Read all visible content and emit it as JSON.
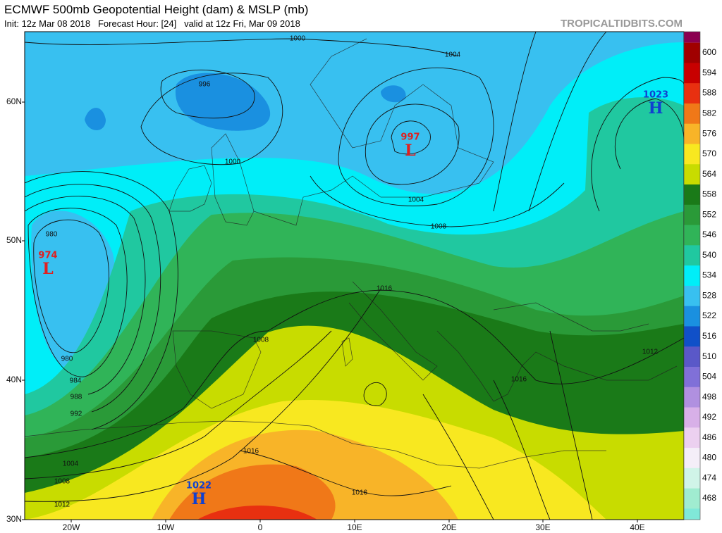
{
  "header": {
    "title": "ECMWF 500mb Geopotential Height (dam) & MSLP (mb)",
    "subtitle": "Init: 12z Mar 08 2018   Forecast Hour: [24]   valid at 12z Fri, Mar 09 2018",
    "site": "TROPICALTIDBITS.COM"
  },
  "axes": {
    "lat_labels": [
      "60N",
      "50N",
      "40N",
      "30N"
    ],
    "lon_labels": [
      "20W",
      "10W",
      "0",
      "10E",
      "20E",
      "30E",
      "40E"
    ]
  },
  "colorbar": {
    "top_color": "#8b0050",
    "bottom_color": "#80e8d8",
    "levels": [
      {
        "value": 600,
        "color": "#a00000"
      },
      {
        "value": 594,
        "color": "#c80000"
      },
      {
        "value": 588,
        "color": "#e83010"
      },
      {
        "value": 582,
        "color": "#f07818"
      },
      {
        "value": 576,
        "color": "#f8b428"
      },
      {
        "value": 570,
        "color": "#f8e820"
      },
      {
        "value": 564,
        "color": "#c8dc00"
      },
      {
        "value": 558,
        "color": "#1a7a18"
      },
      {
        "value": 552,
        "color": "#2a9a38"
      },
      {
        "value": 546,
        "color": "#30b458"
      },
      {
        "value": 540,
        "color": "#20c8a0"
      },
      {
        "value": 534,
        "color": "#00eef8"
      },
      {
        "value": 528,
        "color": "#38c0f0"
      },
      {
        "value": 522,
        "color": "#1a90e0"
      },
      {
        "value": 516,
        "color": "#1050c8"
      },
      {
        "value": 510,
        "color": "#5a58c8"
      },
      {
        "value": 504,
        "color": "#8070d8"
      },
      {
        "value": 498,
        "color": "#b090e0"
      },
      {
        "value": 492,
        "color": "#d8b0e8"
      },
      {
        "value": 486,
        "color": "#ecd0f0"
      },
      {
        "value": 480,
        "color": "#f4eef8"
      },
      {
        "value": 474,
        "color": "#d0f4e8"
      },
      {
        "value": 468,
        "color": "#a0ecd0"
      }
    ]
  },
  "pressure_centers": [
    {
      "value": 974,
      "letter": "L",
      "color": "#e02020"
    },
    {
      "value": 997,
      "letter": "L",
      "color": "#e02020"
    },
    {
      "value": 1023,
      "letter": "H",
      "color": "#1040d0"
    },
    {
      "value": 1022,
      "letter": "H",
      "color": "#1040d0"
    }
  ],
  "contour_labels": [
    1000,
    1004,
    996,
    1000,
    1004,
    1008,
    980,
    1016,
    1008,
    980,
    984,
    988,
    992,
    1016,
    1012,
    1016,
    1004,
    1008,
    1012,
    1016
  ]
}
